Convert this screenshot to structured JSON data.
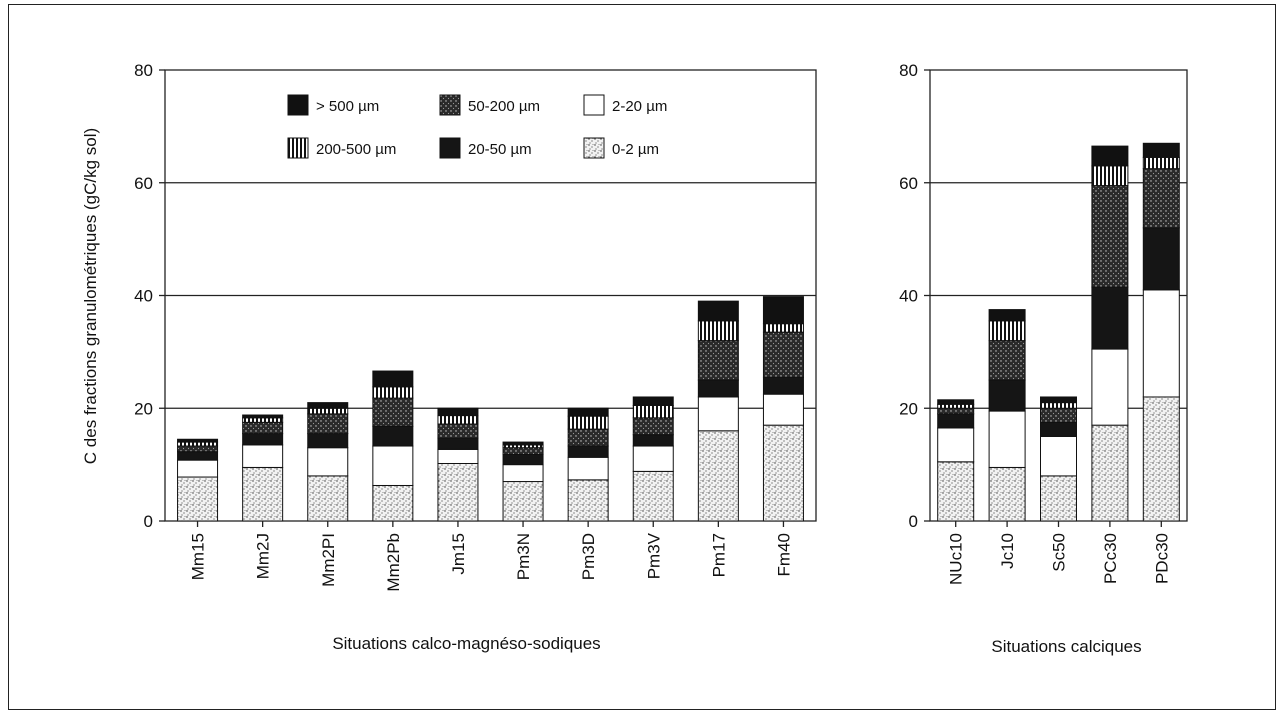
{
  "chart_data": {
    "type": "bar",
    "stacked": true,
    "ylabel": "C des fractions granulométriques (gC/kg sol)",
    "ylim": [
      0,
      80
    ],
    "yticks": [
      0,
      20,
      40,
      60,
      80
    ],
    "gridlines": [
      20,
      40,
      60
    ],
    "legend": {
      "placement": "top",
      "entries": [
        {
          "key": "gt500",
          "label": "> 500 µm",
          "color": "#111111",
          "pattern": "solid-dark"
        },
        {
          "key": "r50_200",
          "label": "50-200 µm",
          "color": "#555555",
          "pattern": "speckled"
        },
        {
          "key": "r2_20",
          "label": "2-20 µm",
          "color": "#ffffff",
          "pattern": "white"
        },
        {
          "key": "r200_500",
          "label": "200-500 µm",
          "color": "#777777",
          "pattern": "vertical-stripes"
        },
        {
          "key": "r20_50",
          "label": "20-50 µm",
          "color": "#1a1a1a",
          "pattern": "dark"
        },
        {
          "key": "r0_2",
          "label": "0-2 µm",
          "color": "#aaaaaa",
          "pattern": "dotted"
        }
      ]
    },
    "stack_order": [
      "r0_2",
      "r2_20",
      "r20_50",
      "r50_200",
      "r200_500",
      "gt500"
    ],
    "panels": [
      {
        "xlabel": "Situations calco-magnéso-sodiques",
        "categories": [
          "Mm15",
          "Mm2J",
          "Mm2PI",
          "Mm2Pb",
          "Jm15",
          "Pm3N",
          "Pm3D",
          "Pm3V",
          "Pm17",
          "Fm40"
        ],
        "series": {
          "r0_2": [
            7.8,
            9.5,
            8.0,
            6.3,
            10.2,
            7.0,
            7.3,
            8.8,
            16.0,
            17.0
          ],
          "r2_20": [
            3.0,
            4.0,
            5.0,
            7.0,
            2.5,
            3.0,
            4.0,
            4.5,
            6.0,
            5.5
          ],
          "r20_50": [
            1.5,
            2.0,
            2.5,
            3.5,
            2.0,
            1.8,
            2.0,
            2.0,
            3.0,
            3.0
          ],
          "r50_200": [
            1.0,
            2.0,
            3.5,
            5.0,
            2.5,
            1.2,
            3.0,
            3.0,
            7.0,
            8.0
          ],
          "r200_500": [
            0.7,
            0.8,
            1.0,
            2.0,
            1.5,
            0.5,
            2.3,
            2.2,
            3.5,
            1.5
          ],
          "gt500": [
            0.5,
            0.5,
            1.0,
            2.8,
            1.3,
            0.5,
            1.4,
            1.5,
            3.5,
            4.8
          ]
        }
      },
      {
        "xlabel": "Situations calciques",
        "categories": [
          "NUc10",
          "Jc10",
          "Sc50",
          "PCc30",
          "PDc30"
        ],
        "series": {
          "r0_2": [
            10.5,
            9.5,
            8.0,
            17.0,
            22.0
          ],
          "r2_20": [
            6.0,
            10.0,
            7.0,
            13.5,
            19.0
          ],
          "r20_50": [
            2.5,
            5.5,
            2.5,
            11.0,
            11.0
          ],
          "r50_200": [
            1.0,
            7.0,
            2.5,
            18.0,
            10.5
          ],
          "r200_500": [
            0.7,
            3.5,
            1.0,
            3.5,
            2.0
          ],
          "gt500": [
            0.8,
            2.0,
            1.0,
            3.5,
            2.5
          ]
        }
      }
    ]
  }
}
